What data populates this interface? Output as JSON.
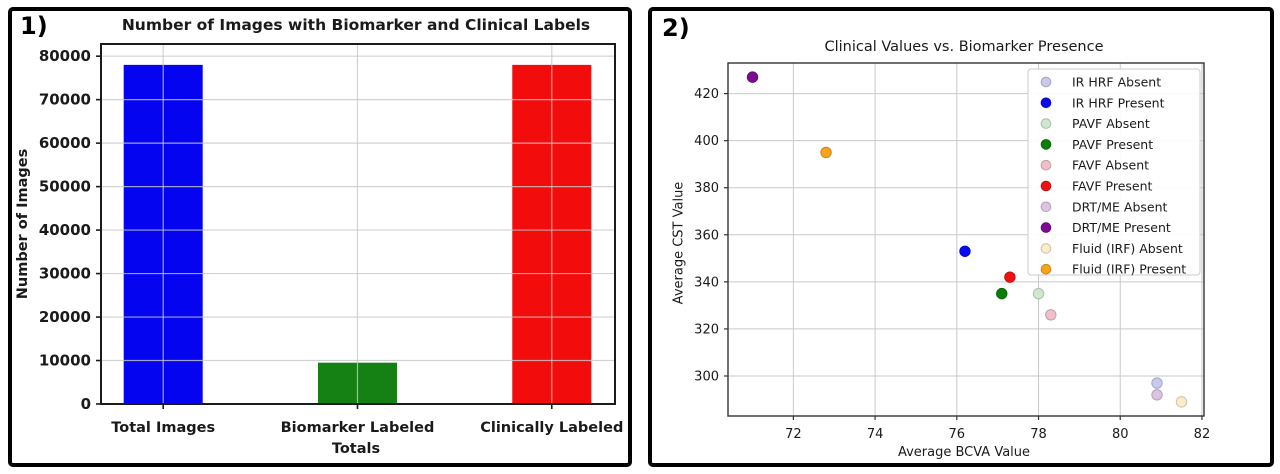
{
  "panels": [
    {
      "number_label": "1)"
    },
    {
      "number_label": "2)"
    }
  ],
  "chart_data": [
    {
      "type": "bar",
      "title": "Number of Images with Biomarker and Clinical Labels",
      "xlabel": "Totals",
      "ylabel": "Number of Images",
      "categories": [
        "Total Images",
        "Biomarker Labeled",
        "Clinically Labeled"
      ],
      "values": [
        78000,
        9500,
        78000
      ],
      "bar_colors": [
        "#0404f0",
        "#158115",
        "#f20c0c"
      ],
      "ylim": [
        0,
        82800
      ],
      "yticks": [
        0,
        10000,
        20000,
        30000,
        40000,
        50000,
        60000,
        70000,
        80000
      ],
      "grid": true,
      "gridline_color": "#c8c8c8",
      "frame_color": "#1b1b1b"
    },
    {
      "type": "scatter",
      "title": "Clinical Values vs. Biomarker Presence",
      "xlabel": "Average BCVA Value",
      "ylabel": "Average CST Value",
      "xlim": [
        70.4,
        82.05
      ],
      "ylim": [
        283,
        433
      ],
      "xticks": [
        72,
        74,
        76,
        78,
        80,
        82
      ],
      "yticks": [
        300,
        320,
        340,
        360,
        380,
        400,
        420
      ],
      "grid": true,
      "gridline_color": "#c9c9c9",
      "frame_color": "#333333",
      "legend_position": "upper right",
      "series": [
        {
          "name": "IR HRF Absent",
          "color": "#c7c9ed",
          "x": 80.9,
          "y": 297
        },
        {
          "name": "IR HRF Present",
          "color": "#0a0af0",
          "x": 76.2,
          "y": 353
        },
        {
          "name": "PAVF Absent",
          "color": "#cfe8cd",
          "x": 78.0,
          "y": 335
        },
        {
          "name": "PAVF Present",
          "color": "#0b7d0b",
          "x": 77.1,
          "y": 335
        },
        {
          "name": "FAVF Absent",
          "color": "#f0c0ca",
          "x": 78.3,
          "y": 326
        },
        {
          "name": "FAVF Present",
          "color": "#f01212",
          "x": 77.3,
          "y": 342
        },
        {
          "name": "DRT/ME Absent",
          "color": "#dbc4e2",
          "x": 80.9,
          "y": 292
        },
        {
          "name": "DRT/ME Present",
          "color": "#7c0c8e",
          "x": 71.0,
          "y": 427
        },
        {
          "name": "Fluid (IRF) Absent",
          "color": "#fbecc9",
          "x": 81.5,
          "y": 289
        },
        {
          "name": "Fluid (IRF) Present",
          "color": "#f7a41c",
          "x": 72.8,
          "y": 395
        }
      ]
    }
  ]
}
